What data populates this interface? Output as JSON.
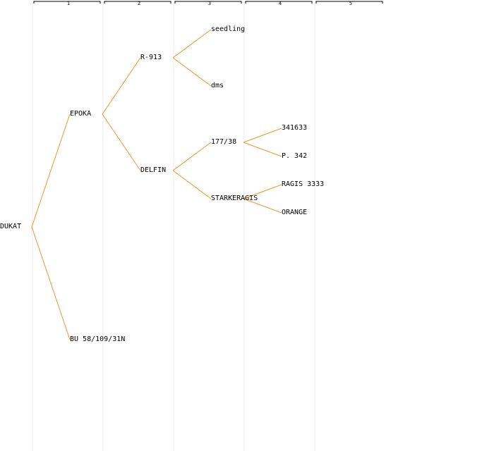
{
  "colors": {
    "link": "#f5922b",
    "column_guide": "#eeeeee",
    "header_bracket": "#000000",
    "text": "#000000"
  },
  "generations": [
    "1",
    "2",
    "3",
    "4",
    "5"
  ],
  "nodes": [
    {
      "id": "dukat",
      "label": "DUKAT",
      "gen": 0,
      "parent": null
    },
    {
      "id": "epoka",
      "label": "EPOKA",
      "gen": 1,
      "parent": "dukat"
    },
    {
      "id": "bu",
      "label": "BU 58/109/31N",
      "gen": 1,
      "parent": "dukat"
    },
    {
      "id": "r913",
      "label": "R-913",
      "gen": 2,
      "parent": "epoka"
    },
    {
      "id": "delfin",
      "label": "DELFIN",
      "gen": 2,
      "parent": "epoka"
    },
    {
      "id": "seedling",
      "label": "seedling",
      "gen": 3,
      "parent": "r913"
    },
    {
      "id": "dms",
      "label": "dms",
      "gen": 3,
      "parent": "r913"
    },
    {
      "id": "n17738",
      "label": "177/38",
      "gen": 3,
      "parent": "delfin"
    },
    {
      "id": "starkeragis",
      "label": "STARKERAGIS",
      "gen": 3,
      "parent": "delfin"
    },
    {
      "id": "n341633",
      "label": "341633",
      "gen": 4,
      "parent": "n17738"
    },
    {
      "id": "p342",
      "label": "P. 342",
      "gen": 4,
      "parent": "n17738"
    },
    {
      "id": "ragis3333",
      "label": "RAGIS 3333",
      "gen": 4,
      "parent": "starkeragis"
    },
    {
      "id": "orange",
      "label": "ORANGE",
      "gen": 4,
      "parent": "starkeragis"
    }
  ]
}
